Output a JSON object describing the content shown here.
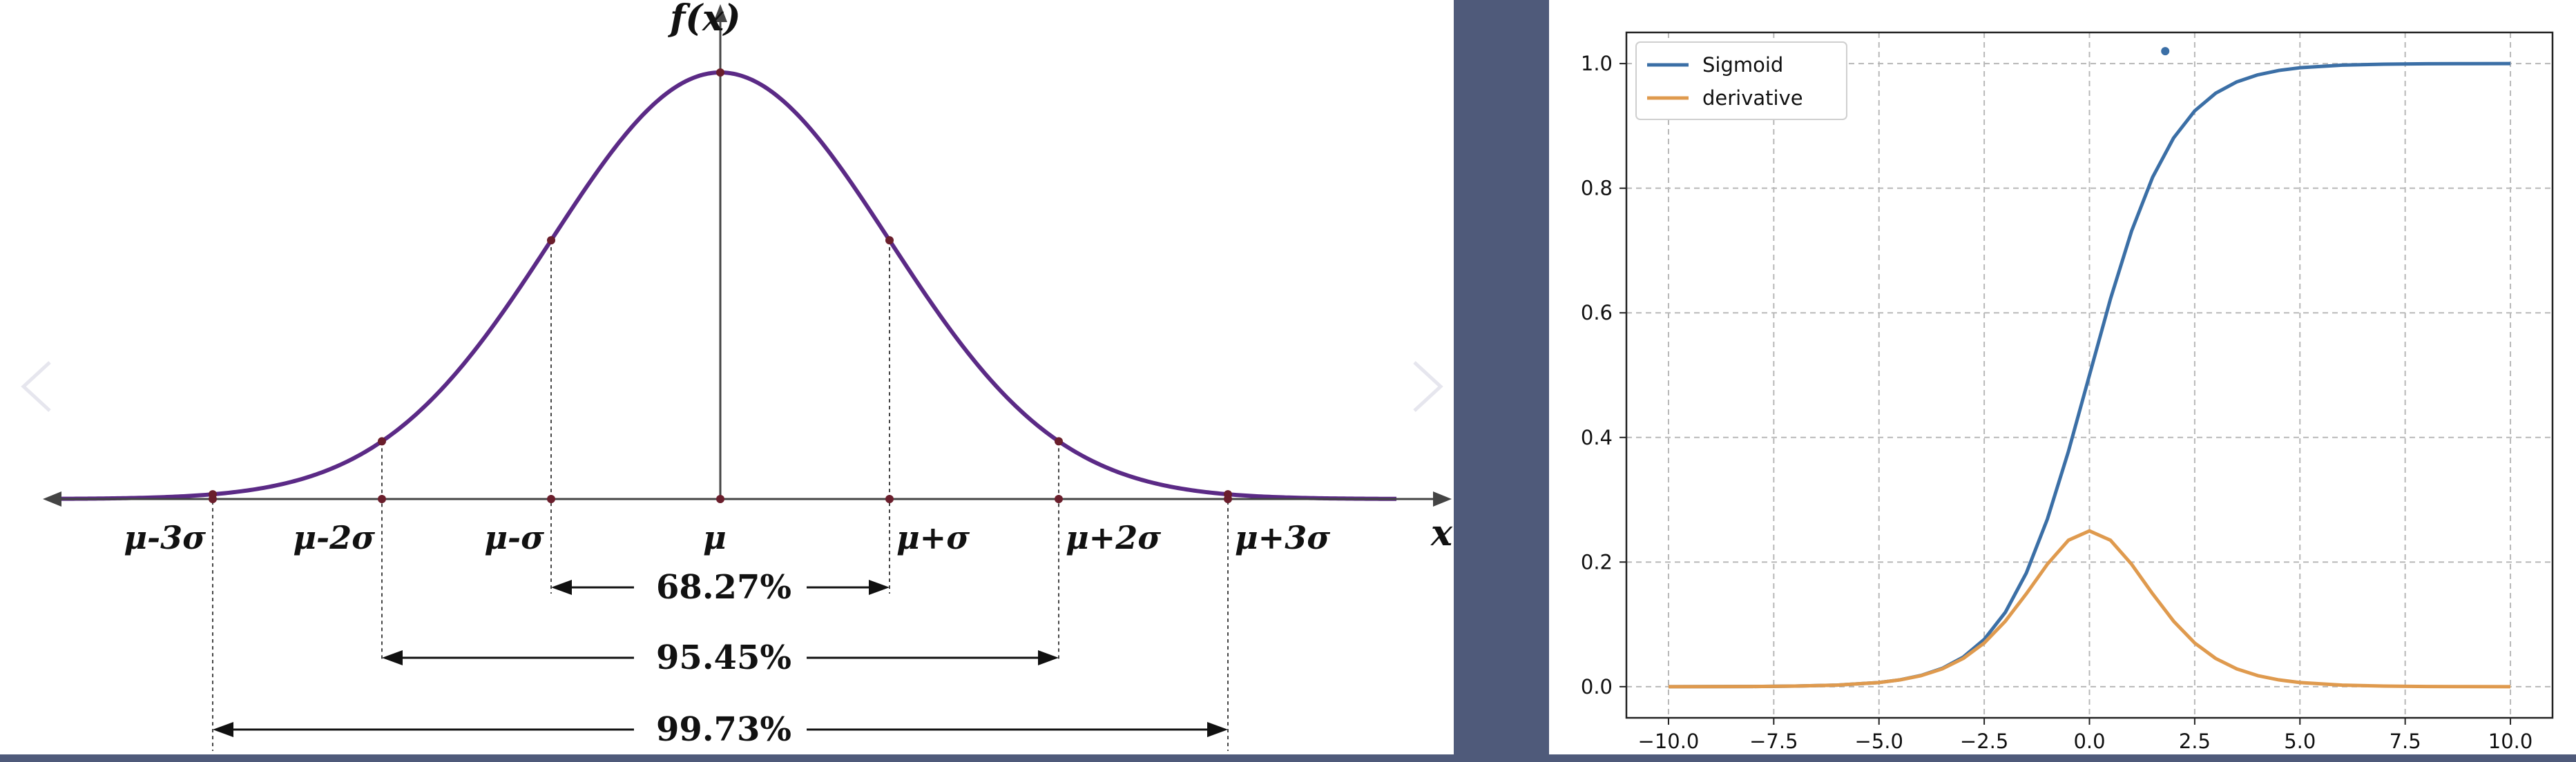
{
  "colors": {
    "background": "#4f5a7a",
    "normal_curve": "#5b2a86",
    "sigmoid": "#3b6fa6",
    "derivative": "#df9a4e",
    "grid": "#b8b8b8"
  },
  "normal_distribution": {
    "y_axis_label": "f(x)",
    "x_axis_label": "x",
    "tick_labels": [
      "μ-3σ",
      "μ-2σ",
      "μ-σ",
      "μ",
      "μ+σ",
      "μ+2σ",
      "μ+3σ"
    ],
    "intervals": [
      {
        "label": "68.27%",
        "k": 1
      },
      {
        "label": "95.45%",
        "k": 2
      },
      {
        "label": "99.73%",
        "k": 3
      }
    ]
  },
  "chart_data": {
    "type": "line",
    "x": [
      -10,
      -9,
      -8,
      -7,
      -6,
      -5,
      -4.5,
      -4,
      -3.5,
      -3,
      -2.5,
      -2,
      -1.5,
      -1,
      -0.5,
      0,
      0.5,
      1,
      1.5,
      2,
      2.5,
      3,
      3.5,
      4,
      4.5,
      5,
      6,
      7,
      8,
      9,
      10
    ],
    "series": [
      {
        "name": "Sigmoid",
        "values": [
          0.0,
          0.0001,
          0.0003,
          0.0009,
          0.0025,
          0.0067,
          0.011,
          0.018,
          0.0293,
          0.0474,
          0.0759,
          0.1192,
          0.1824,
          0.2689,
          0.3775,
          0.5,
          0.6225,
          0.7311,
          0.8176,
          0.8808,
          0.9241,
          0.9526,
          0.9707,
          0.982,
          0.989,
          0.9933,
          0.9975,
          0.9991,
          0.9997,
          0.9999,
          1.0
        ]
      },
      {
        "name": "derivative",
        "values": [
          0.0,
          0.0001,
          0.0003,
          0.0009,
          0.0025,
          0.0066,
          0.0109,
          0.0177,
          0.0285,
          0.0452,
          0.0701,
          0.105,
          0.1491,
          0.1966,
          0.235,
          0.25,
          0.235,
          0.1966,
          0.1491,
          0.105,
          0.0701,
          0.0452,
          0.0285,
          0.0177,
          0.0109,
          0.0066,
          0.0025,
          0.0009,
          0.0003,
          0.0001,
          0.0
        ]
      }
    ],
    "xticks": [
      "−10.0",
      "−7.5",
      "−5.0",
      "−2.5",
      "0.0",
      "2.5",
      "5.0",
      "7.5",
      "10.0"
    ],
    "yticks": [
      "0.0",
      "0.2",
      "0.4",
      "0.6",
      "0.8",
      "1.0"
    ],
    "xlim": [
      -11,
      11
    ],
    "ylim": [
      -0.05,
      1.05
    ],
    "grid": true,
    "legend": "top-left",
    "title": "",
    "xlabel": "",
    "ylabel": "",
    "marker_point": {
      "x": 1.8,
      "y": 1.02
    }
  }
}
